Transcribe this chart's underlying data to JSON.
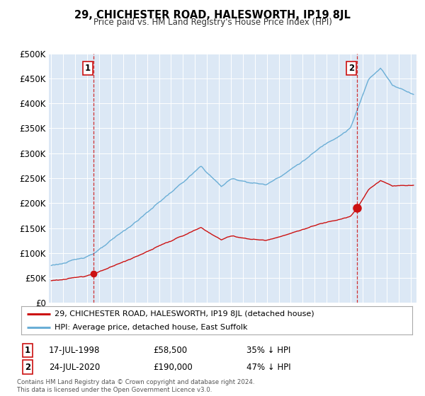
{
  "title": "29, CHICHESTER ROAD, HALESWORTH, IP19 8JL",
  "subtitle": "Price paid vs. HM Land Registry's House Price Index (HPI)",
  "bg_color": "#dce8f5",
  "hpi_color": "#6aaed6",
  "price_color": "#cc1111",
  "sale1_date": 1998.54,
  "sale1_price": 58500,
  "sale2_date": 2020.55,
  "sale2_price": 190000,
  "ylim": [
    0,
    500000
  ],
  "xlim_start": 1994.8,
  "xlim_end": 2025.5,
  "legend_label_price": "29, CHICHESTER ROAD, HALESWORTH, IP19 8JL (detached house)",
  "legend_label_hpi": "HPI: Average price, detached house, East Suffolk",
  "annotation1_label": "1",
  "annotation1_date": "17-JUL-1998",
  "annotation1_price": "£58,500",
  "annotation1_pct": "35% ↓ HPI",
  "annotation2_label": "2",
  "annotation2_date": "24-JUL-2020",
  "annotation2_price": "£190,000",
  "annotation2_pct": "47% ↓ HPI",
  "footer1": "Contains HM Land Registry data © Crown copyright and database right 2024.",
  "footer2": "This data is licensed under the Open Government Licence v3.0.",
  "yticks": [
    0,
    50000,
    100000,
    150000,
    200000,
    250000,
    300000,
    350000,
    400000,
    450000,
    500000
  ],
  "ytick_labels": [
    "£0",
    "£50K",
    "£100K",
    "£150K",
    "£200K",
    "£250K",
    "£300K",
    "£350K",
    "£400K",
    "£450K",
    "£500K"
  ]
}
